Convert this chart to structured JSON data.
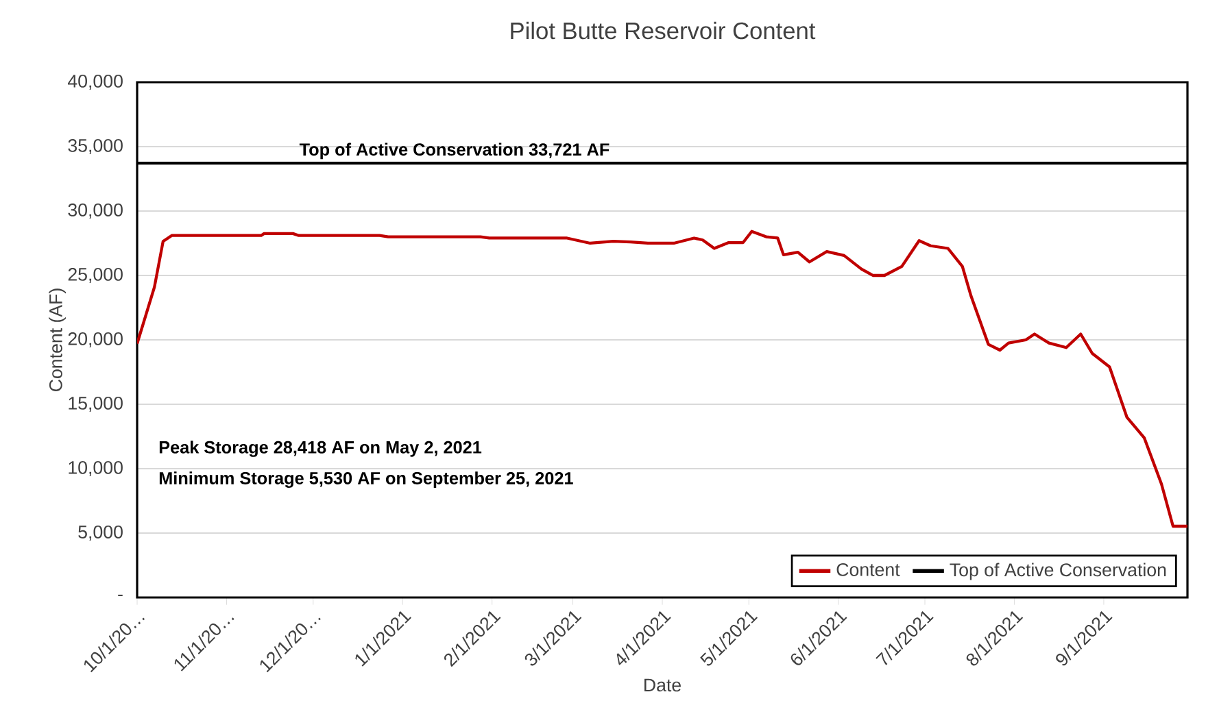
{
  "chart_data": {
    "type": "line",
    "title": "Pilot Butte Reservoir Content",
    "xlabel": "Date",
    "ylabel": "Content (AF)",
    "xlim": [
      "2020-10-01",
      "2021-09-30"
    ],
    "xticks": [
      {
        "value": "2020-10-01",
        "label": "10/1/20…"
      },
      {
        "value": "2020-11-01",
        "label": "11/1/20…"
      },
      {
        "value": "2020-12-01",
        "label": "12/1/20…"
      },
      {
        "value": "2021-01-01",
        "label": "1/1/2021"
      },
      {
        "value": "2021-02-01",
        "label": "2/1/2021"
      },
      {
        "value": "2021-03-01",
        "label": "3/1/2021"
      },
      {
        "value": "2021-04-01",
        "label": "4/1/2021"
      },
      {
        "value": "2021-05-01",
        "label": "5/1/2021"
      },
      {
        "value": "2021-06-01",
        "label": "6/1/2021"
      },
      {
        "value": "2021-07-01",
        "label": "7/1/2021"
      },
      {
        "value": "2021-08-01",
        "label": "8/1/2021"
      },
      {
        "value": "2021-09-01",
        "label": "9/1/2021"
      }
    ],
    "ylim": [
      0,
      40000
    ],
    "yticks": [
      {
        "value": 0,
        "label": "-"
      },
      {
        "value": 5000,
        "label": "5,000"
      },
      {
        "value": 10000,
        "label": "10,000"
      },
      {
        "value": 15000,
        "label": "15,000"
      },
      {
        "value": 20000,
        "label": "20,000"
      },
      {
        "value": 25000,
        "label": "25,000"
      },
      {
        "value": 30000,
        "label": "30,000"
      },
      {
        "value": 35000,
        "label": "35,000"
      },
      {
        "value": 40000,
        "label": "40,000"
      }
    ],
    "grid": "y",
    "legend": "bottom right",
    "marker": "none",
    "line_style": "solid",
    "series": [
      {
        "name": "Content",
        "color": "#c00000",
        "x": [
          "2020-10-01",
          "2020-10-07",
          "2020-10-10",
          "2020-10-13",
          "2020-11-13",
          "2020-11-14",
          "2020-11-24",
          "2020-11-26",
          "2020-12-24",
          "2020-12-27",
          "2021-01-28",
          "2021-01-31",
          "2021-02-27",
          "2021-03-07",
          "2021-03-15",
          "2021-03-21",
          "2021-03-27",
          "2021-04-05",
          "2021-04-12",
          "2021-04-15",
          "2021-04-19",
          "2021-04-24",
          "2021-04-29",
          "2021-05-02",
          "2021-05-07",
          "2021-05-11",
          "2021-05-13",
          "2021-05-18",
          "2021-05-22",
          "2021-05-28",
          "2021-06-03",
          "2021-06-09",
          "2021-06-13",
          "2021-06-17",
          "2021-06-23",
          "2021-06-29",
          "2021-07-03",
          "2021-07-09",
          "2021-07-14",
          "2021-07-17",
          "2021-07-23",
          "2021-07-27",
          "2021-07-30",
          "2021-08-05",
          "2021-08-08",
          "2021-08-13",
          "2021-08-19",
          "2021-08-24",
          "2021-08-28",
          "2021-09-03",
          "2021-09-09",
          "2021-09-15",
          "2021-09-21",
          "2021-09-25",
          "2021-09-30"
        ],
        "values": [
          19700,
          24100,
          27650,
          28100,
          28100,
          28250,
          28250,
          28100,
          28100,
          28000,
          28000,
          27900,
          27900,
          27500,
          27650,
          27600,
          27500,
          27500,
          27900,
          27750,
          27100,
          27550,
          27550,
          28418,
          28000,
          27900,
          26600,
          26800,
          26050,
          26850,
          26550,
          25500,
          25000,
          25000,
          25700,
          27700,
          27300,
          27100,
          25700,
          23400,
          19650,
          19200,
          19750,
          20000,
          20450,
          19750,
          19400,
          20450,
          18950,
          17900,
          14000,
          12400,
          8800,
          5530,
          5530
        ]
      },
      {
        "name": "Top of Active Conservation",
        "color": "#000000",
        "x": [
          "2020-10-01",
          "2021-09-30"
        ],
        "values": [
          33721,
          33721
        ]
      }
    ],
    "annotations": [
      {
        "text": "Top of Active Conservation 33,721 AF",
        "x": "2021-01-19",
        "y": 33721
      },
      "Peak Storage 28,418 AF on May 2, 2021",
      "Minimum Storage 5,530 AF on September 25, 2021"
    ]
  }
}
